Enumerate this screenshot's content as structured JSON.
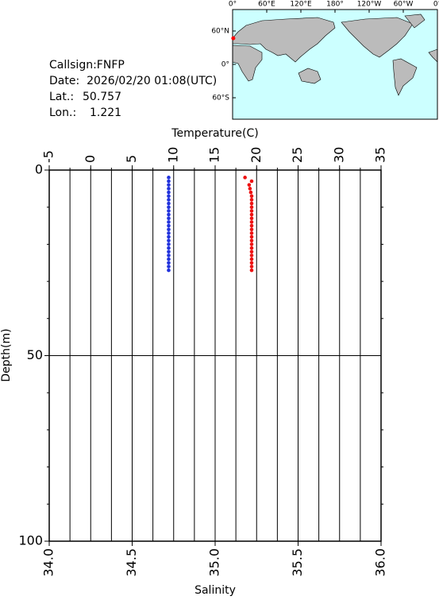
{
  "info": {
    "callsign": "Callsign:FNFP",
    "date": "Date:  2026/02/20 01:08(UTC)",
    "lat_label": "Lat.:",
    "lat": 50.757,
    "lon_label": "Lon.:",
    "lon": 1.221
  },
  "map": {
    "lon_labels": [
      "0°",
      "60°E",
      "120°E",
      "180°",
      "120°W",
      "60°W",
      "0°"
    ],
    "lat_labels": [
      "60°N",
      "0°",
      "60°S"
    ],
    "ship_color": "#ff0000"
  },
  "chart_data": {
    "type": "scatter",
    "x2_label": "Temperature(C)",
    "x_label": "Salinity",
    "y_label": "Depth(m)",
    "x2lim": [
      -5,
      35
    ],
    "x2ticks": [
      -5,
      0,
      5,
      10,
      15,
      20,
      25,
      30,
      35
    ],
    "x2minorticks": [
      -2.5,
      0,
      2.5,
      5,
      7.5,
      10,
      12.5,
      15,
      17.5,
      20,
      22.5,
      25,
      27.5,
      30,
      32.5
    ],
    "xlim": [
      34,
      36
    ],
    "xticks": [
      {
        "value": 34,
        "label": "34.0"
      },
      34.5,
      {
        "value": 35,
        "label": "35.0"
      },
      35.5,
      {
        "value": 36,
        "label": "36.0"
      }
    ],
    "ylim": [
      0,
      100
    ],
    "yticks": [
      0,
      50,
      100
    ],
    "yminorticks": [
      10,
      20,
      30,
      40,
      60,
      70,
      80,
      90
    ],
    "y_inverted": true,
    "grid": true,
    "series": [
      {
        "axis": "x2",
        "color": "#ee1111",
        "x": [
          18.6,
          19.4,
          19.1,
          19.2,
          19.3,
          19.4,
          19.4,
          19.4,
          19.4,
          19.4,
          19.4,
          19.4,
          19.4,
          19.4,
          19.4,
          19.4,
          19.4,
          19.4,
          19.4,
          19.4,
          19.4,
          19.4,
          19.4,
          19.4,
          19.4,
          19.4
        ],
        "y": [
          2,
          3,
          4,
          5,
          6,
          7,
          8,
          9,
          10,
          11,
          12,
          13,
          14,
          15,
          16,
          17,
          18,
          19,
          20,
          21,
          22,
          23,
          24,
          25,
          26,
          27
        ]
      },
      {
        "axis": "x",
        "color": "#2233dd",
        "x": [
          34.72,
          34.72,
          34.72,
          34.72,
          34.72,
          34.72,
          34.72,
          34.72,
          34.72,
          34.72,
          34.72,
          34.72,
          34.72,
          34.72,
          34.72,
          34.72,
          34.72,
          34.72,
          34.72,
          34.72,
          34.72,
          34.72,
          34.72,
          34.72,
          34.72,
          34.72
        ],
        "y": [
          2,
          3,
          4,
          5,
          6,
          7,
          8,
          9,
          10,
          11,
          12,
          13,
          14,
          15,
          16,
          17,
          18,
          19,
          20,
          21,
          22,
          23,
          24,
          25,
          26,
          27
        ]
      }
    ]
  }
}
